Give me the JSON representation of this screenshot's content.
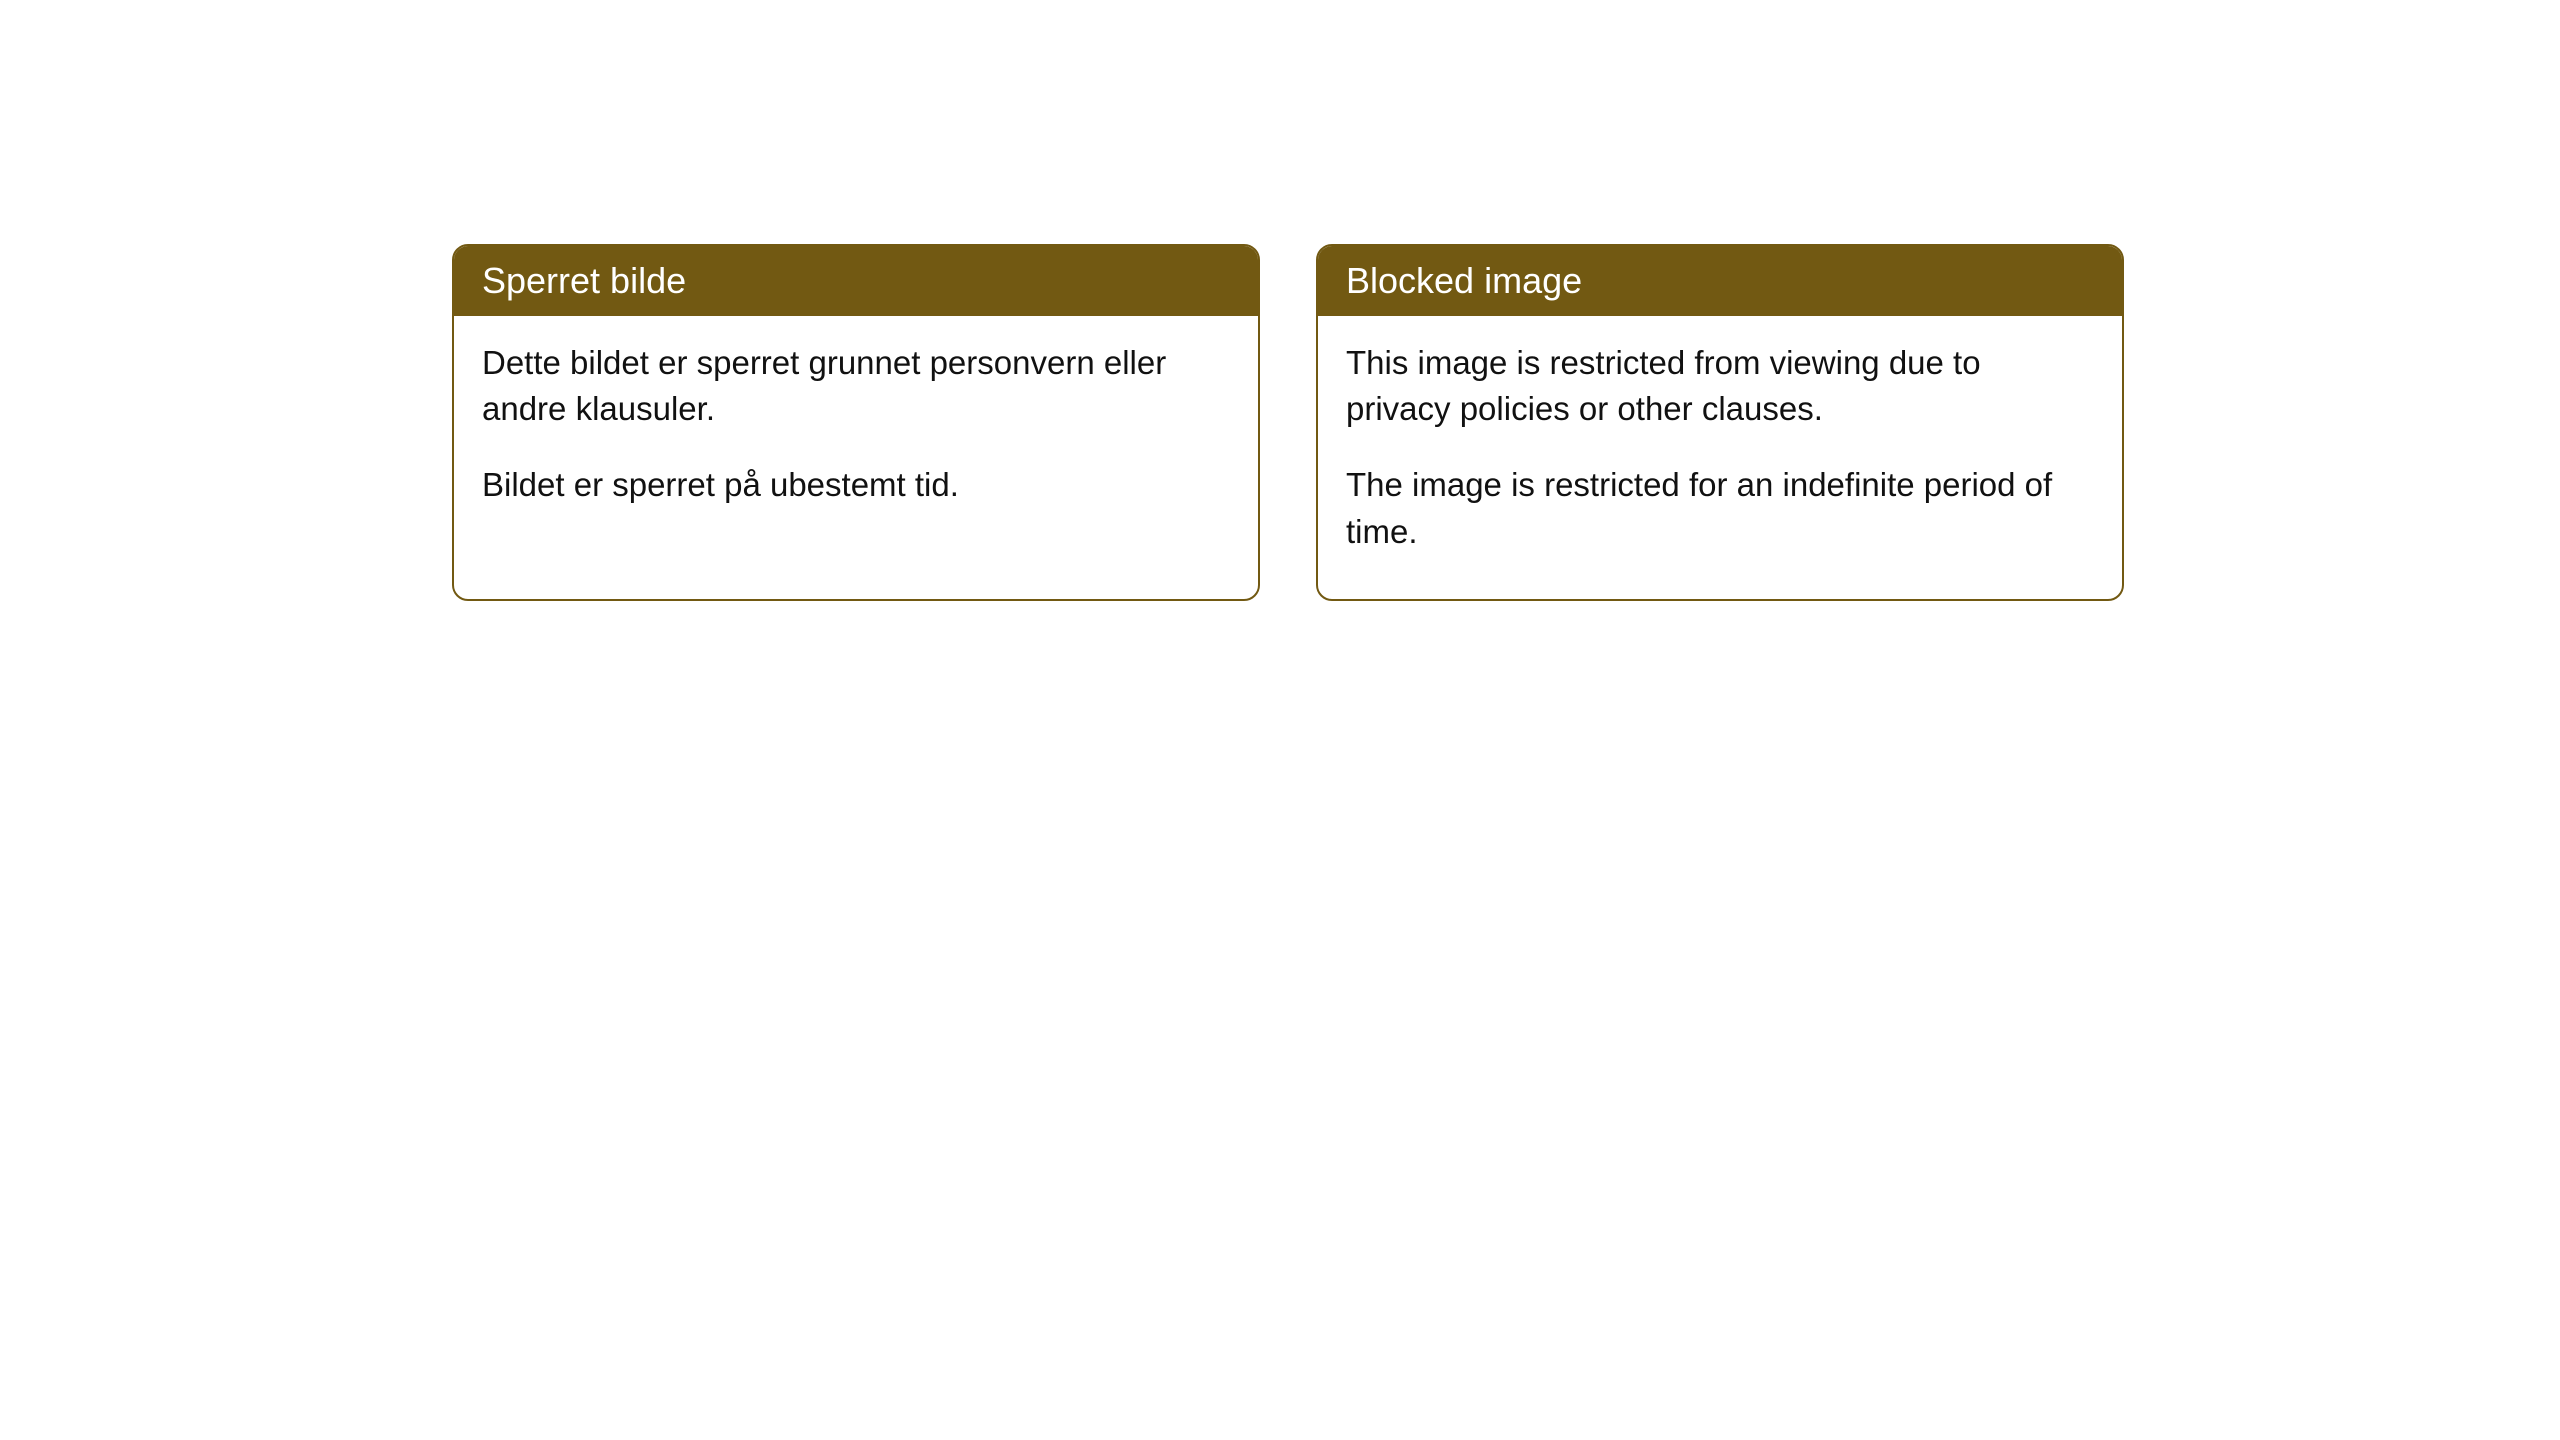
{
  "cards": [
    {
      "title": "Sperret bilde",
      "paragraph1": "Dette bildet er sperret grunnet personvern eller andre klausuler.",
      "paragraph2": "Bildet er sperret på ubestemt tid."
    },
    {
      "title": "Blocked image",
      "paragraph1": "This image is restricted from viewing due to privacy policies or other clauses.",
      "paragraph2": "The image is restricted for an indefinite period of time."
    }
  ],
  "style": {
    "header_background": "#725912",
    "header_text_color": "#ffffff",
    "border_color": "#725912",
    "body_text_color": "#111111",
    "page_background": "#ffffff",
    "border_radius": 16,
    "title_fontsize": 36,
    "body_fontsize": 33
  }
}
